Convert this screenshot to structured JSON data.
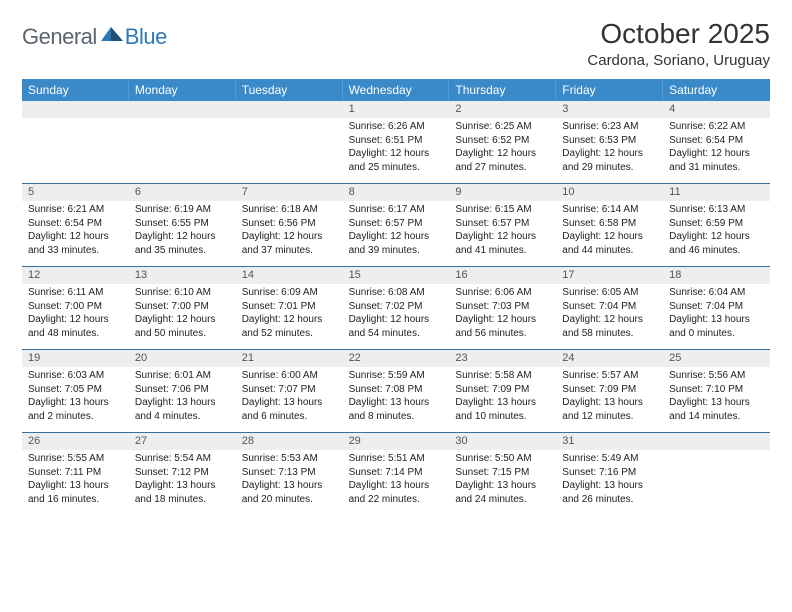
{
  "logo": {
    "general": "General",
    "blue": "Blue"
  },
  "title": "October 2025",
  "location": "Cardona, Soriano, Uruguay",
  "header_bg": "#3a89c9",
  "weekdays": [
    "Sunday",
    "Monday",
    "Tuesday",
    "Wednesday",
    "Thursday",
    "Friday",
    "Saturday"
  ],
  "week_border": "#3a6f9a",
  "daynum_bg": "#eceeef",
  "text_color": "#222",
  "fontsize_body": 10,
  "weeks": [
    [
      {
        "n": "",
        "lines": []
      },
      {
        "n": "",
        "lines": []
      },
      {
        "n": "",
        "lines": []
      },
      {
        "n": "1",
        "lines": [
          "Sunrise: 6:26 AM",
          "Sunset: 6:51 PM",
          "Daylight: 12 hours",
          "and 25 minutes."
        ]
      },
      {
        "n": "2",
        "lines": [
          "Sunrise: 6:25 AM",
          "Sunset: 6:52 PM",
          "Daylight: 12 hours",
          "and 27 minutes."
        ]
      },
      {
        "n": "3",
        "lines": [
          "Sunrise: 6:23 AM",
          "Sunset: 6:53 PM",
          "Daylight: 12 hours",
          "and 29 minutes."
        ]
      },
      {
        "n": "4",
        "lines": [
          "Sunrise: 6:22 AM",
          "Sunset: 6:54 PM",
          "Daylight: 12 hours",
          "and 31 minutes."
        ]
      }
    ],
    [
      {
        "n": "5",
        "lines": [
          "Sunrise: 6:21 AM",
          "Sunset: 6:54 PM",
          "Daylight: 12 hours",
          "and 33 minutes."
        ]
      },
      {
        "n": "6",
        "lines": [
          "Sunrise: 6:19 AM",
          "Sunset: 6:55 PM",
          "Daylight: 12 hours",
          "and 35 minutes."
        ]
      },
      {
        "n": "7",
        "lines": [
          "Sunrise: 6:18 AM",
          "Sunset: 6:56 PM",
          "Daylight: 12 hours",
          "and 37 minutes."
        ]
      },
      {
        "n": "8",
        "lines": [
          "Sunrise: 6:17 AM",
          "Sunset: 6:57 PM",
          "Daylight: 12 hours",
          "and 39 minutes."
        ]
      },
      {
        "n": "9",
        "lines": [
          "Sunrise: 6:15 AM",
          "Sunset: 6:57 PM",
          "Daylight: 12 hours",
          "and 41 minutes."
        ]
      },
      {
        "n": "10",
        "lines": [
          "Sunrise: 6:14 AM",
          "Sunset: 6:58 PM",
          "Daylight: 12 hours",
          "and 44 minutes."
        ]
      },
      {
        "n": "11",
        "lines": [
          "Sunrise: 6:13 AM",
          "Sunset: 6:59 PM",
          "Daylight: 12 hours",
          "and 46 minutes."
        ]
      }
    ],
    [
      {
        "n": "12",
        "lines": [
          "Sunrise: 6:11 AM",
          "Sunset: 7:00 PM",
          "Daylight: 12 hours",
          "and 48 minutes."
        ]
      },
      {
        "n": "13",
        "lines": [
          "Sunrise: 6:10 AM",
          "Sunset: 7:00 PM",
          "Daylight: 12 hours",
          "and 50 minutes."
        ]
      },
      {
        "n": "14",
        "lines": [
          "Sunrise: 6:09 AM",
          "Sunset: 7:01 PM",
          "Daylight: 12 hours",
          "and 52 minutes."
        ]
      },
      {
        "n": "15",
        "lines": [
          "Sunrise: 6:08 AM",
          "Sunset: 7:02 PM",
          "Daylight: 12 hours",
          "and 54 minutes."
        ]
      },
      {
        "n": "16",
        "lines": [
          "Sunrise: 6:06 AM",
          "Sunset: 7:03 PM",
          "Daylight: 12 hours",
          "and 56 minutes."
        ]
      },
      {
        "n": "17",
        "lines": [
          "Sunrise: 6:05 AM",
          "Sunset: 7:04 PM",
          "Daylight: 12 hours",
          "and 58 minutes."
        ]
      },
      {
        "n": "18",
        "lines": [
          "Sunrise: 6:04 AM",
          "Sunset: 7:04 PM",
          "Daylight: 13 hours",
          "and 0 minutes."
        ]
      }
    ],
    [
      {
        "n": "19",
        "lines": [
          "Sunrise: 6:03 AM",
          "Sunset: 7:05 PM",
          "Daylight: 13 hours",
          "and 2 minutes."
        ]
      },
      {
        "n": "20",
        "lines": [
          "Sunrise: 6:01 AM",
          "Sunset: 7:06 PM",
          "Daylight: 13 hours",
          "and 4 minutes."
        ]
      },
      {
        "n": "21",
        "lines": [
          "Sunrise: 6:00 AM",
          "Sunset: 7:07 PM",
          "Daylight: 13 hours",
          "and 6 minutes."
        ]
      },
      {
        "n": "22",
        "lines": [
          "Sunrise: 5:59 AM",
          "Sunset: 7:08 PM",
          "Daylight: 13 hours",
          "and 8 minutes."
        ]
      },
      {
        "n": "23",
        "lines": [
          "Sunrise: 5:58 AM",
          "Sunset: 7:09 PM",
          "Daylight: 13 hours",
          "and 10 minutes."
        ]
      },
      {
        "n": "24",
        "lines": [
          "Sunrise: 5:57 AM",
          "Sunset: 7:09 PM",
          "Daylight: 13 hours",
          "and 12 minutes."
        ]
      },
      {
        "n": "25",
        "lines": [
          "Sunrise: 5:56 AM",
          "Sunset: 7:10 PM",
          "Daylight: 13 hours",
          "and 14 minutes."
        ]
      }
    ],
    [
      {
        "n": "26",
        "lines": [
          "Sunrise: 5:55 AM",
          "Sunset: 7:11 PM",
          "Daylight: 13 hours",
          "and 16 minutes."
        ]
      },
      {
        "n": "27",
        "lines": [
          "Sunrise: 5:54 AM",
          "Sunset: 7:12 PM",
          "Daylight: 13 hours",
          "and 18 minutes."
        ]
      },
      {
        "n": "28",
        "lines": [
          "Sunrise: 5:53 AM",
          "Sunset: 7:13 PM",
          "Daylight: 13 hours",
          "and 20 minutes."
        ]
      },
      {
        "n": "29",
        "lines": [
          "Sunrise: 5:51 AM",
          "Sunset: 7:14 PM",
          "Daylight: 13 hours",
          "and 22 minutes."
        ]
      },
      {
        "n": "30",
        "lines": [
          "Sunrise: 5:50 AM",
          "Sunset: 7:15 PM",
          "Daylight: 13 hours",
          "and 24 minutes."
        ]
      },
      {
        "n": "31",
        "lines": [
          "Sunrise: 5:49 AM",
          "Sunset: 7:16 PM",
          "Daylight: 13 hours",
          "and 26 minutes."
        ]
      },
      {
        "n": "",
        "lines": []
      }
    ]
  ]
}
